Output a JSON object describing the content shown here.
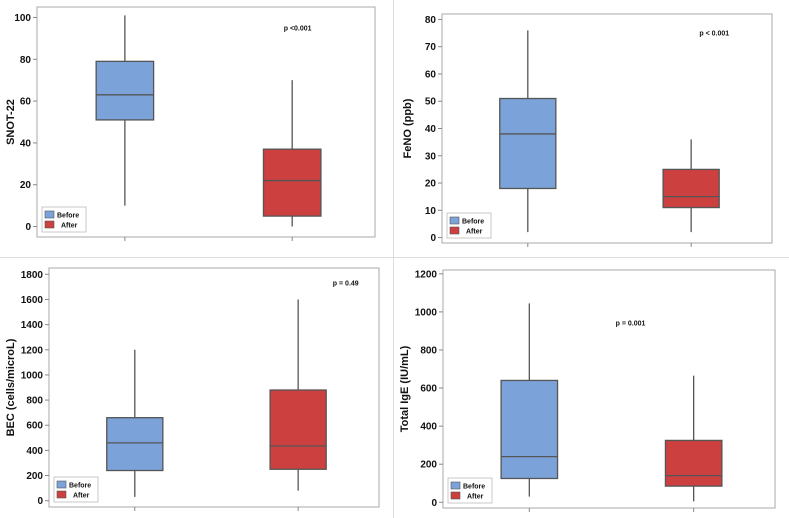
{
  "colors": {
    "before": "#7ba3d9",
    "after": "#cc4040",
    "frame": "#aaaaaa",
    "stroke": "#555555"
  },
  "chart_data": [
    {
      "type": "box",
      "ylabel": "SNOT-22",
      "ylim": [
        -5,
        105
      ],
      "yticks": [
        0,
        20,
        40,
        60,
        80,
        100
      ],
      "pvalue": "p <0.001",
      "pvalue_pos": [
        0.73,
        0.09
      ],
      "legend": [
        "Before",
        "After"
      ],
      "series": [
        {
          "name": "Before",
          "min": 10,
          "q1": 51,
          "median": 63,
          "q3": 79,
          "max": 101
        },
        {
          "name": "After",
          "min": 0,
          "q1": 5,
          "median": 22,
          "q3": 37,
          "max": 70
        }
      ]
    },
    {
      "type": "box",
      "ylabel": "FeNO (ppb)",
      "ylim": [
        -2,
        82
      ],
      "yticks": [
        0,
        10,
        20,
        30,
        40,
        50,
        60,
        70,
        80
      ],
      "pvalue": "p < 0.001",
      "pvalue_pos": [
        0.78,
        0.08
      ],
      "legend": [
        "Before",
        "After"
      ],
      "series": [
        {
          "name": "Before",
          "min": 2,
          "q1": 18,
          "median": 38,
          "q3": 51,
          "max": 76
        },
        {
          "name": "After",
          "min": 2,
          "q1": 11,
          "median": 15,
          "q3": 25,
          "max": 36
        }
      ]
    },
    {
      "type": "box",
      "ylabel": "BEC (cells/microL)",
      "ylim": [
        -50,
        1850
      ],
      "yticks": [
        0,
        200,
        400,
        600,
        800,
        1000,
        1200,
        1400,
        1600,
        1800
      ],
      "pvalue": "p = 0.49",
      "pvalue_pos": [
        0.86,
        0.06
      ],
      "legend": [
        "Before",
        "After"
      ],
      "series": [
        {
          "name": "Before",
          "min": 30,
          "q1": 240,
          "median": 460,
          "q3": 660,
          "max": 1200
        },
        {
          "name": "After",
          "min": 80,
          "q1": 250,
          "median": 435,
          "q3": 880,
          "max": 1600
        }
      ]
    },
    {
      "type": "box",
      "ylabel": "Total IgE (IU/mL)",
      "ylim": [
        -30,
        1220
      ],
      "yticks": [
        0,
        200,
        400,
        600,
        800,
        1000,
        1200
      ],
      "pvalue": "p = 0.001",
      "pvalue_pos": [
        0.52,
        0.22
      ],
      "legend": [
        "Before",
        "After"
      ],
      "series": [
        {
          "name": "Before",
          "min": 30,
          "q1": 125,
          "median": 240,
          "q3": 640,
          "max": 1045
        },
        {
          "name": "After",
          "min": 5,
          "q1": 85,
          "median": 140,
          "q3": 325,
          "max": 665
        }
      ]
    }
  ]
}
